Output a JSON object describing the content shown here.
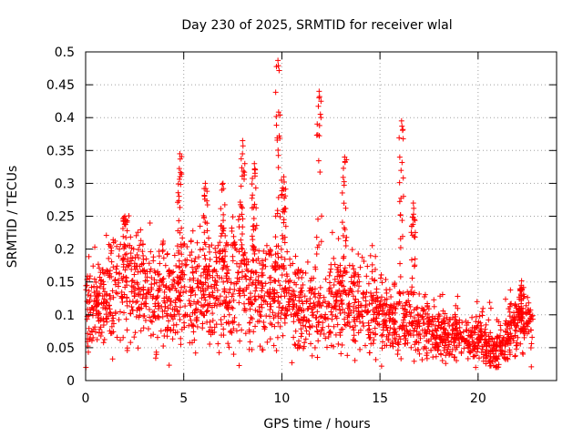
{
  "chart_data": {
    "type": "scatter",
    "title": "Day 230 of 2025, SRMTID for receiver wlal",
    "xlabel": "GPS time / hours",
    "ylabel": "SRMTID / TECUs",
    "xlim": [
      0,
      24
    ],
    "ylim": [
      0,
      0.5
    ],
    "xticks": [
      0,
      5,
      10,
      15,
      20
    ],
    "xtick_labels": [
      "0",
      "5",
      "10",
      "15",
      "20"
    ],
    "yticks": [
      0,
      0.05,
      0.1,
      0.15,
      0.2,
      0.25,
      0.3,
      0.35,
      0.4,
      0.45,
      0.5
    ],
    "ytick_labels": [
      "0",
      "0.05",
      "0.1",
      "0.15",
      "0.2",
      "0.25",
      "0.3",
      "0.35",
      "0.4",
      "0.45",
      "0.5"
    ],
    "grid": true,
    "marker": "plus",
    "color": "#ff0000",
    "x_range_data": [
      0,
      22.8
    ],
    "envelope_hours": [
      0,
      1,
      2,
      3,
      4,
      5,
      6,
      7,
      8,
      9,
      10,
      11,
      12,
      13,
      14,
      15,
      16,
      17,
      18,
      19,
      20,
      21,
      22,
      22.8
    ],
    "envelope_median": [
      0.1,
      0.12,
      0.15,
      0.14,
      0.13,
      0.14,
      0.13,
      0.14,
      0.15,
      0.13,
      0.14,
      0.11,
      0.1,
      0.12,
      0.11,
      0.1,
      0.09,
      0.08,
      0.07,
      0.065,
      0.06,
      0.045,
      0.09,
      0.08
    ],
    "spikes": [
      {
        "x": 2.0,
        "y": 0.25
      },
      {
        "x": 4.8,
        "y": 0.345
      },
      {
        "x": 6.1,
        "y": 0.3
      },
      {
        "x": 7.0,
        "y": 0.3
      },
      {
        "x": 8.0,
        "y": 0.365
      },
      {
        "x": 8.6,
        "y": 0.33
      },
      {
        "x": 9.8,
        "y": 0.487
      },
      {
        "x": 10.1,
        "y": 0.31
      },
      {
        "x": 11.9,
        "y": 0.44
      },
      {
        "x": 13.2,
        "y": 0.34
      },
      {
        "x": 16.1,
        "y": 0.395
      },
      {
        "x": 16.7,
        "y": 0.27
      },
      {
        "x": 22.2,
        "y": 0.145
      }
    ]
  }
}
